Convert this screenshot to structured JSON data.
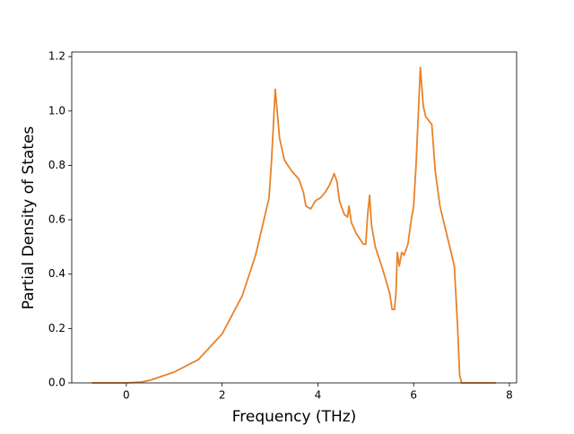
{
  "chart_data": {
    "type": "line",
    "xlabel": "Frequency (THz)",
    "ylabel": "Partial Density of States",
    "x": [
      -0.72,
      0,
      0.3,
      0.5,
      1.0,
      1.5,
      2.0,
      2.42,
      2.7,
      2.98,
      3.03,
      3.11,
      3.2,
      3.3,
      3.45,
      3.6,
      3.7,
      3.75,
      3.85,
      3.95,
      4.05,
      4.15,
      4.25,
      4.34,
      4.4,
      4.45,
      4.55,
      4.62,
      4.65,
      4.7,
      4.8,
      4.95,
      5.0,
      5.04,
      5.08,
      5.12,
      5.2,
      5.35,
      5.5,
      5.55,
      5.6,
      5.63,
      5.66,
      5.7,
      5.75,
      5.8,
      5.88,
      5.95,
      6.0,
      6.05,
      6.1,
      6.14,
      6.2,
      6.25,
      6.38,
      6.45,
      6.55,
      6.7,
      6.85,
      6.92,
      6.96,
      7.0,
      7.72
    ],
    "series": [
      {
        "color": "#e8822a",
        "values": [
          0,
          0,
          0.003,
          0.01,
          0.04,
          0.085,
          0.18,
          0.32,
          0.47,
          0.68,
          0.81,
          1.08,
          0.9,
          0.82,
          0.78,
          0.75,
          0.7,
          0.65,
          0.64,
          0.67,
          0.68,
          0.7,
          0.73,
          0.77,
          0.74,
          0.67,
          0.62,
          0.61,
          0.65,
          0.59,
          0.55,
          0.51,
          0.51,
          0.62,
          0.69,
          0.58,
          0.5,
          0.42,
          0.33,
          0.27,
          0.27,
          0.33,
          0.48,
          0.43,
          0.48,
          0.47,
          0.51,
          0.6,
          0.65,
          0.8,
          1.0,
          1.16,
          1.02,
          0.98,
          0.95,
          0.78,
          0.65,
          0.54,
          0.43,
          0.2,
          0.03,
          0,
          0
        ]
      }
    ],
    "xlim": [
      -1.14,
      8.15
    ],
    "ylim": [
      0,
      1.217
    ],
    "xticks": [
      0,
      2,
      4,
      6,
      8
    ],
    "yticks": [
      {
        "value": 0,
        "label": "0.0"
      },
      0.2,
      0.4,
      0.6,
      0.8,
      {
        "value": 1,
        "label": "1.0"
      },
      1.2
    ]
  }
}
